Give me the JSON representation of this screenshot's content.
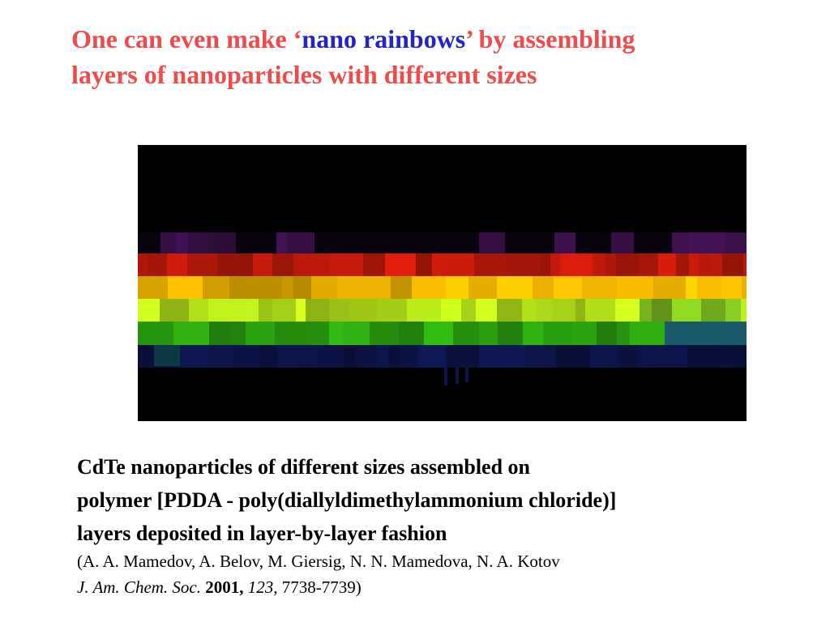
{
  "title": {
    "part1": "One can even make ‘",
    "accent": "nano rainbows",
    "part2": "’ by assembling",
    "line2": "layers of nanoparticles with different sizes"
  },
  "caption": {
    "line1": "CdTe nanoparticles of different sizes assembled on",
    "line2": "polymer [PDDA - poly(diallyldimethylammonium chloride)]",
    "line3": "layers deposited in layer-by-layer fashion"
  },
  "citation": {
    "authors": "(A. A. Mamedov, A. Belov, M. Giersig, N. N. Mamedova, N. A. Kotov",
    "journal": "J. Am. Chem. Soc.",
    "year": "2001,",
    "volume": "123,",
    "pages": "7738-7739)"
  },
  "figure": {
    "band_colors": [
      "#3a0f4a",
      "#c41a0a",
      "#f0b400",
      "#b8e81a",
      "#2aa010",
      "#0c1448"
    ],
    "accent_colors": {
      "title": "#f04b4b",
      "rainbow_word": "#2323c8"
    }
  }
}
